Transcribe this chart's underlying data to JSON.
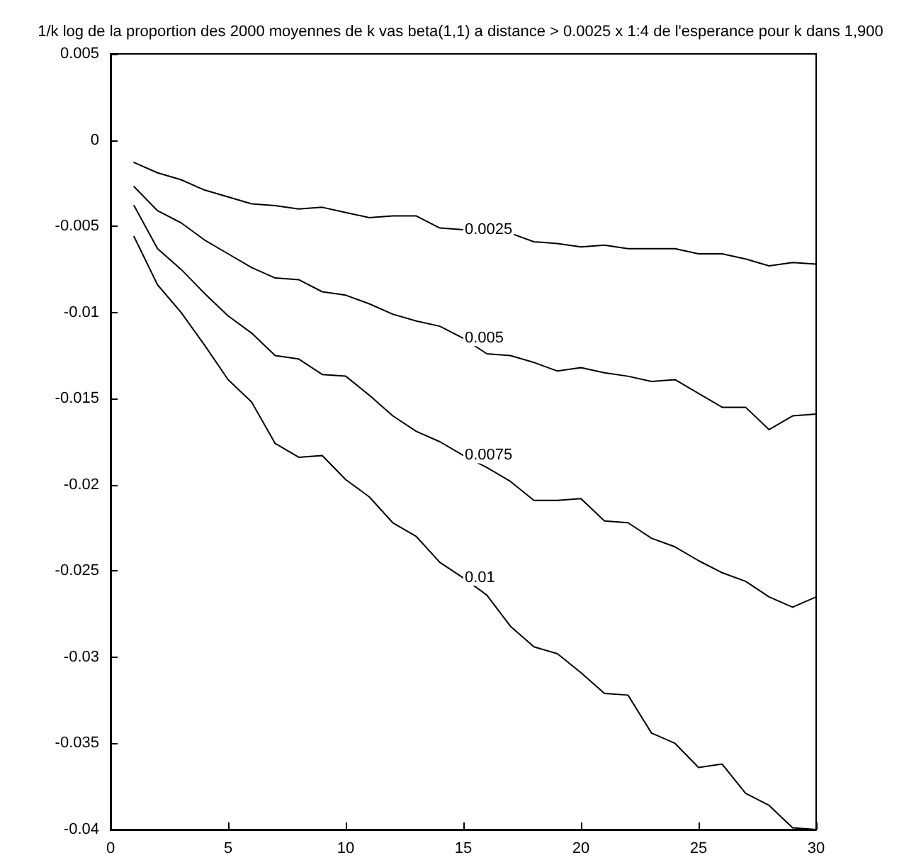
{
  "chart_data": {
    "type": "line",
    "title": "1/k log de la proportion des 2000 moyennes de k vas beta(1,1) a distance > 0.0025 x 1:4 de l'esperance pour k dans 1,900",
    "x": [
      1,
      2,
      3,
      4,
      5,
      6,
      7,
      8,
      9,
      10,
      11,
      12,
      13,
      14,
      15,
      16,
      17,
      18,
      19,
      20,
      21,
      22,
      23,
      24,
      25,
      26,
      27,
      28,
      29,
      30
    ],
    "series": [
      {
        "name": "0.0025",
        "color": "#000000",
        "values": [
          -0.0013,
          -0.0019,
          -0.0023,
          -0.0029,
          -0.0033,
          -0.0037,
          -0.0038,
          -0.004,
          -0.0039,
          -0.0042,
          -0.0045,
          -0.0044,
          -0.0044,
          -0.0051,
          -0.0052,
          -0.0053,
          -0.0054,
          -0.0059,
          -0.006,
          -0.0062,
          -0.0061,
          -0.0063,
          -0.0063,
          -0.0063,
          -0.0066,
          -0.0066,
          -0.0069,
          -0.0073,
          -0.0071,
          -0.0072
        ]
      },
      {
        "name": "0.005",
        "color": "#000000",
        "values": [
          -0.0027,
          -0.0041,
          -0.0048,
          -0.0058,
          -0.0066,
          -0.0074,
          -0.008,
          -0.0081,
          -0.0088,
          -0.009,
          -0.0095,
          -0.0101,
          -0.0105,
          -0.0108,
          -0.0115,
          -0.0124,
          -0.0125,
          -0.0129,
          -0.0134,
          -0.0132,
          -0.0135,
          -0.0137,
          -0.014,
          -0.0139,
          -0.0147,
          -0.0155,
          -0.0155,
          -0.0168,
          -0.016,
          -0.0159
        ]
      },
      {
        "name": "0.0075",
        "color": "#000000",
        "values": [
          -0.0038,
          -0.0063,
          -0.0075,
          -0.0089,
          -0.0102,
          -0.0112,
          -0.0125,
          -0.0127,
          -0.0136,
          -0.0137,
          -0.0148,
          -0.016,
          -0.0169,
          -0.0175,
          -0.0183,
          -0.019,
          -0.0198,
          -0.0209,
          -0.0209,
          -0.0208,
          -0.0221,
          -0.0222,
          -0.0231,
          -0.0236,
          -0.0244,
          -0.0251,
          -0.0256,
          -0.0265,
          -0.0271,
          -0.0265
        ]
      },
      {
        "name": "0.01",
        "color": "#000000",
        "values": [
          -0.0056,
          -0.0084,
          -0.01,
          -0.0119,
          -0.0139,
          -0.0152,
          -0.0176,
          -0.0184,
          -0.0183,
          -0.0197,
          -0.0207,
          -0.0222,
          -0.023,
          -0.0245,
          -0.0254,
          -0.0264,
          -0.0282,
          -0.0294,
          -0.0298,
          -0.0309,
          -0.0321,
          -0.0322,
          -0.0344,
          -0.035,
          -0.0364,
          -0.0362,
          -0.0379,
          -0.0386,
          -0.0399,
          -0.04
        ]
      }
    ],
    "xlim": [
      0,
      30
    ],
    "xticks": [
      0,
      5,
      10,
      15,
      20,
      25,
      30
    ],
    "ylim": [
      -0.04,
      0.005
    ],
    "yticks": [
      -0.04,
      -0.035,
      -0.03,
      -0.025,
      -0.02,
      -0.015,
      -0.01,
      -0.005,
      0,
      0.005
    ],
    "grid": false,
    "legend": false,
    "marker": "none",
    "line_style": "solid"
  }
}
